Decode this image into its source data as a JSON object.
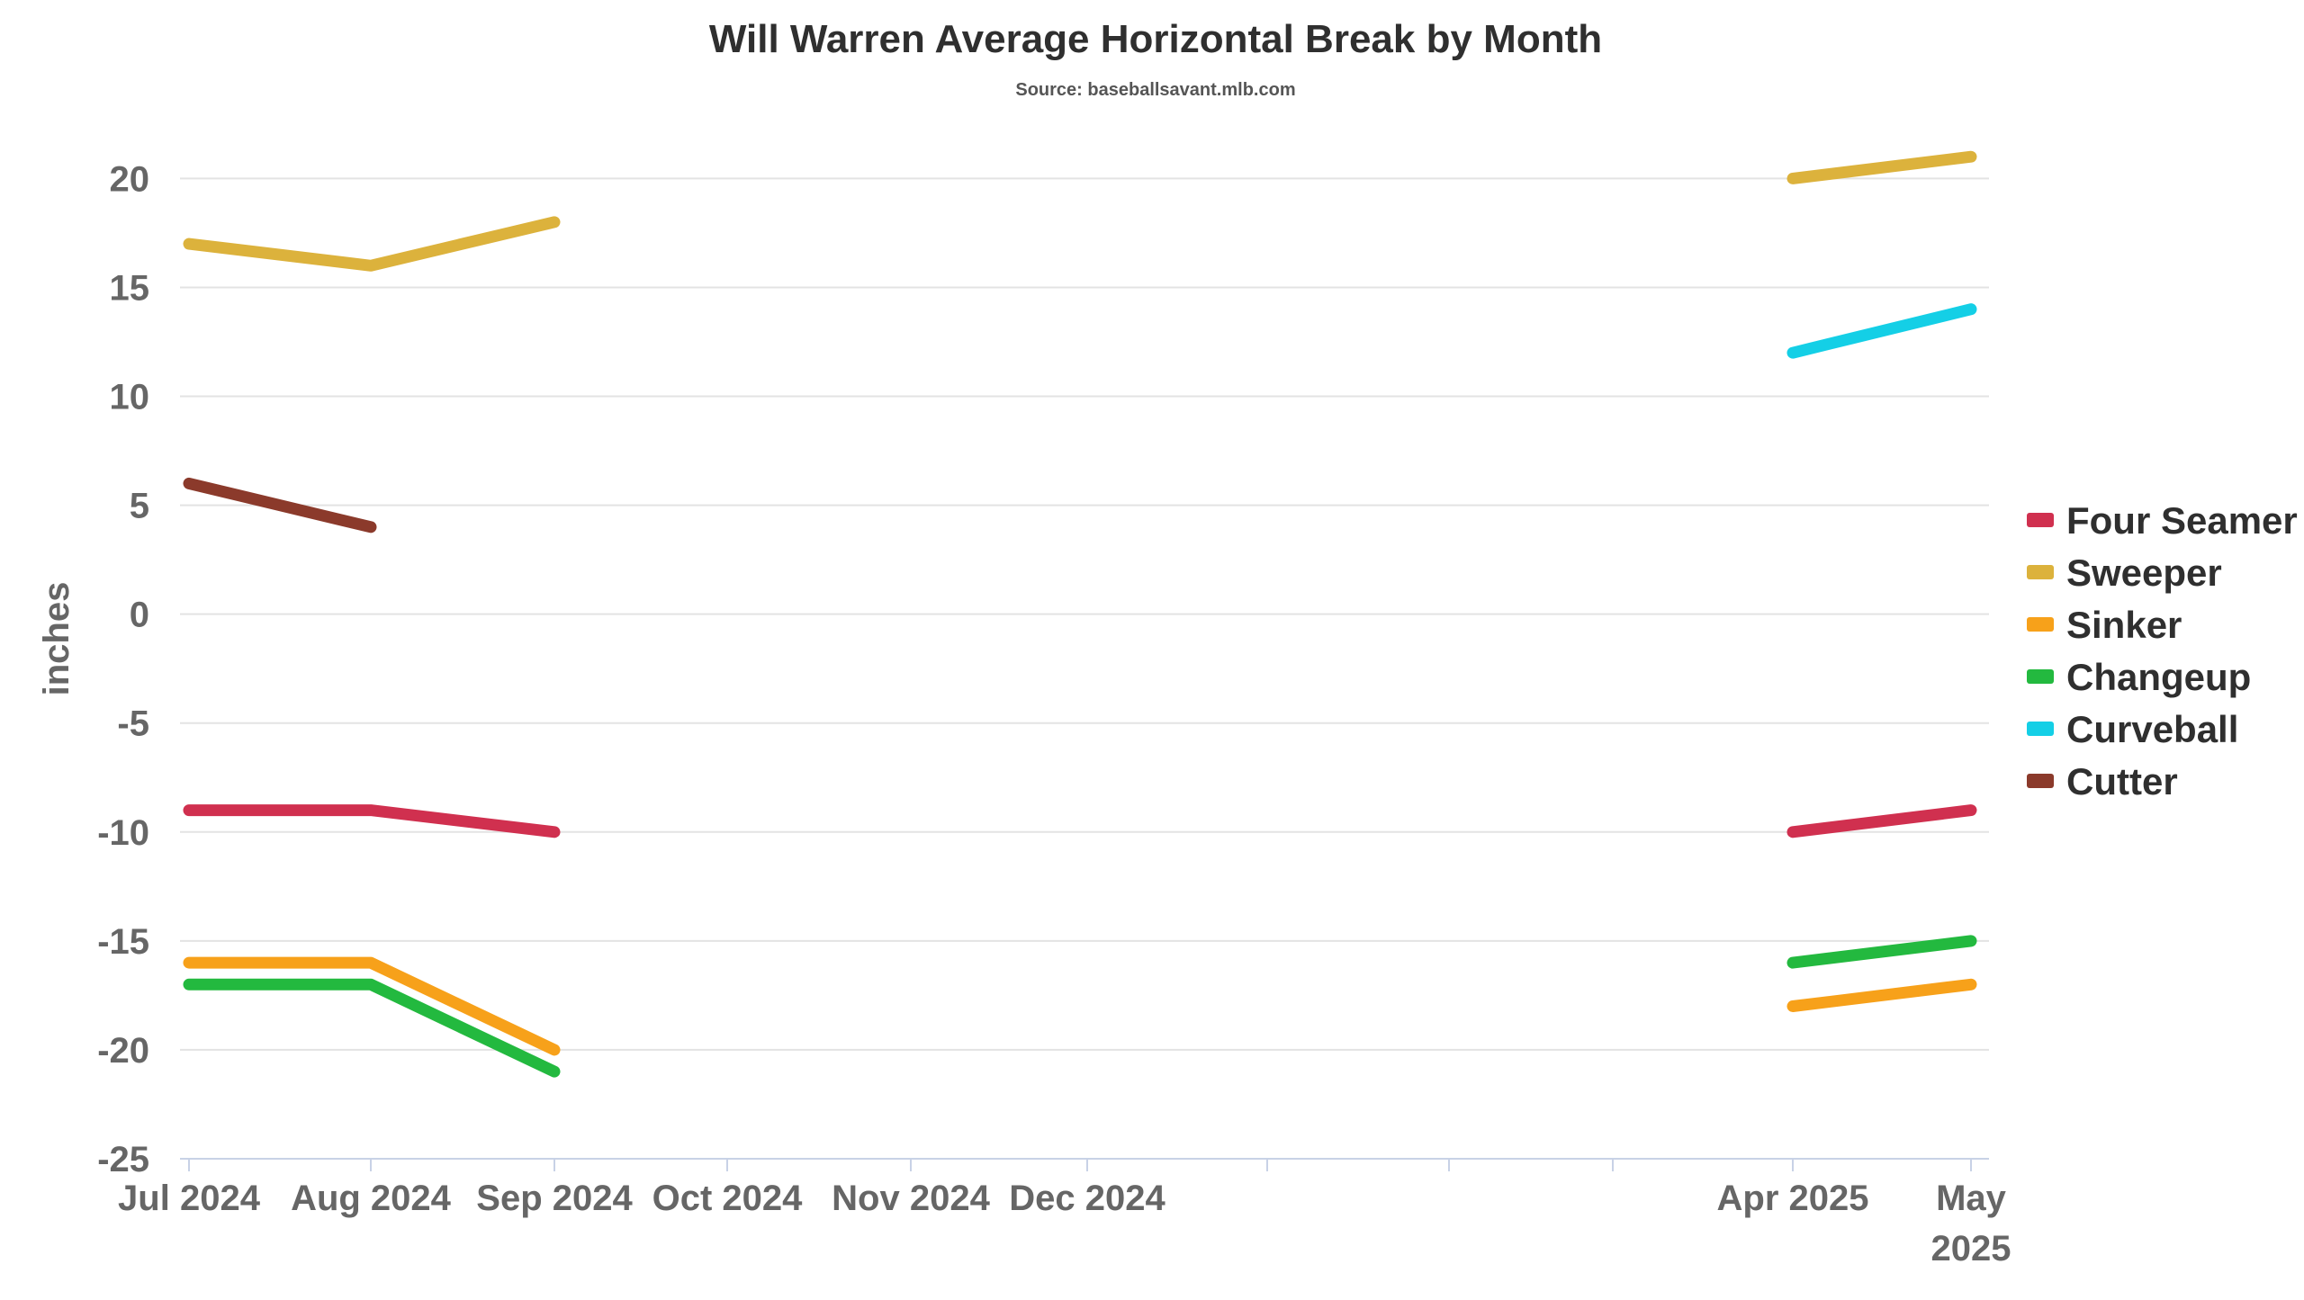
{
  "chart_data": {
    "type": "line",
    "title": "Will Warren Average Horizontal Break by Month",
    "subtitle": "Source: baseballsavant.mlb.com",
    "xlabel": "",
    "ylabel": "inches",
    "ylim": [
      -25,
      22
    ],
    "yticks": [
      20,
      15,
      10,
      5,
      0,
      -5,
      -10,
      -15,
      -20,
      -25
    ],
    "grid": true,
    "legend_position": "right",
    "x_ticks": [
      {
        "month_index": 0,
        "label": [
          "Jul 2024"
        ]
      },
      {
        "month_index": 1,
        "label": [
          "Aug 2024"
        ]
      },
      {
        "month_index": 2,
        "label": [
          "Sep 2024"
        ]
      },
      {
        "month_index": 3,
        "label": [
          "Oct 2024"
        ]
      },
      {
        "month_index": 4,
        "label": [
          "Nov 2024"
        ]
      },
      {
        "month_index": 5,
        "label": [
          "Dec 2024"
        ]
      },
      {
        "month_index": 6,
        "label": []
      },
      {
        "month_index": 7,
        "label": []
      },
      {
        "month_index": 8,
        "label": []
      },
      {
        "month_index": 9,
        "label": [
          "Apr 2025"
        ]
      },
      {
        "month_index": 10,
        "label": [
          "May",
          "2025"
        ]
      }
    ],
    "series": [
      {
        "name": "Four Seamer",
        "color": "#d0304f",
        "segments": [
          [
            {
              "x": "Jul 2024",
              "y": -9
            },
            {
              "x": "Aug 2024",
              "y": -9
            },
            {
              "x": "Sep 2024",
              "y": -10
            }
          ],
          [
            {
              "x": "Apr 2025",
              "y": -10
            },
            {
              "x": "May 2025",
              "y": -9
            }
          ]
        ]
      },
      {
        "name": "Sweeper",
        "color": "#dcb23c",
        "segments": [
          [
            {
              "x": "Jul 2024",
              "y": 17
            },
            {
              "x": "Aug 2024",
              "y": 16
            },
            {
              "x": "Sep 2024",
              "y": 18
            }
          ],
          [
            {
              "x": "Apr 2025",
              "y": 20
            },
            {
              "x": "May 2025",
              "y": 21
            }
          ]
        ]
      },
      {
        "name": "Sinker",
        "color": "#f7a11a",
        "segments": [
          [
            {
              "x": "Jul 2024",
              "y": -16
            },
            {
              "x": "Aug 2024",
              "y": -16
            },
            {
              "x": "Sep 2024",
              "y": -20
            }
          ],
          [
            {
              "x": "Apr 2025",
              "y": -18
            },
            {
              "x": "May 2025",
              "y": -17
            }
          ]
        ]
      },
      {
        "name": "Changeup",
        "color": "#23b93f",
        "segments": [
          [
            {
              "x": "Jul 2024",
              "y": -17
            },
            {
              "x": "Aug 2024",
              "y": -17
            },
            {
              "x": "Sep 2024",
              "y": -21
            }
          ],
          [
            {
              "x": "Apr 2025",
              "y": -16
            },
            {
              "x": "May 2025",
              "y": -15
            }
          ]
        ]
      },
      {
        "name": "Curveball",
        "color": "#14cfe6",
        "segments": [
          [
            {
              "x": "Apr 2025",
              "y": 12
            },
            {
              "x": "May 2025",
              "y": 14
            }
          ]
        ]
      },
      {
        "name": "Cutter",
        "color": "#8b3a2b",
        "segments": [
          [
            {
              "x": "Jul 2024",
              "y": 6
            },
            {
              "x": "Aug 2024",
              "y": 4
            }
          ]
        ]
      }
    ]
  }
}
